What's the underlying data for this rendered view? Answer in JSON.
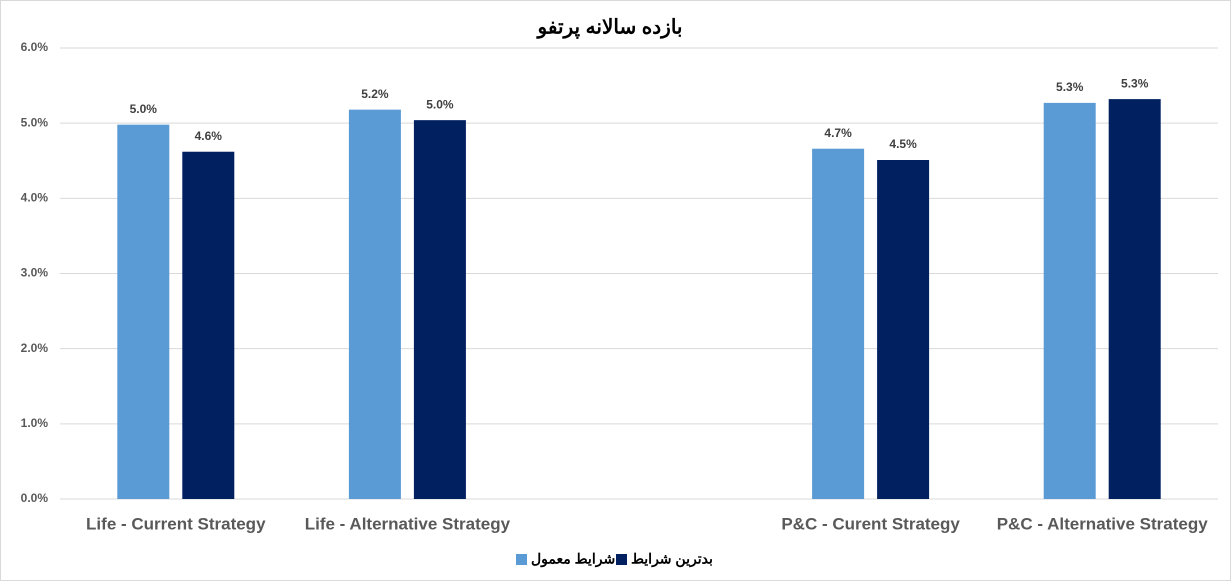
{
  "chart_data": {
    "type": "bar",
    "title": "بازده سالانه پرتفو",
    "categories": [
      "Life - Current Strategy",
      "Life - Alternative Strategy",
      null,
      "P&C - Curent Strategy",
      "P&C - Alternative Strategy"
    ],
    "series": [
      {
        "name": "شرایط معمول",
        "color": "#5b9bd5",
        "values": [
          4.98,
          5.18,
          null,
          4.66,
          5.27
        ],
        "value_labels": [
          "5.0%",
          "5.2%",
          null,
          "4.7%",
          "5.3%"
        ]
      },
      {
        "name": "بدترین شرایط",
        "color": "#002060",
        "values": [
          4.62,
          5.04,
          null,
          4.51,
          5.32
        ],
        "value_labels": [
          "4.6%",
          "5.0%",
          null,
          "4.5%",
          "5.3%"
        ]
      }
    ],
    "ylim": [
      0,
      6
    ],
    "yticks": [
      {
        "value": 0,
        "label": "0.0%"
      },
      {
        "value": 1,
        "label": "1.0%"
      },
      {
        "value": 2,
        "label": "2.0%"
      },
      {
        "value": 3,
        "label": "3.0%"
      },
      {
        "value": 4,
        "label": "4.0%"
      },
      {
        "value": 5,
        "label": "5.0%"
      },
      {
        "value": 6,
        "label": "6.0%"
      }
    ],
    "grid": true,
    "legend": "bottom"
  }
}
